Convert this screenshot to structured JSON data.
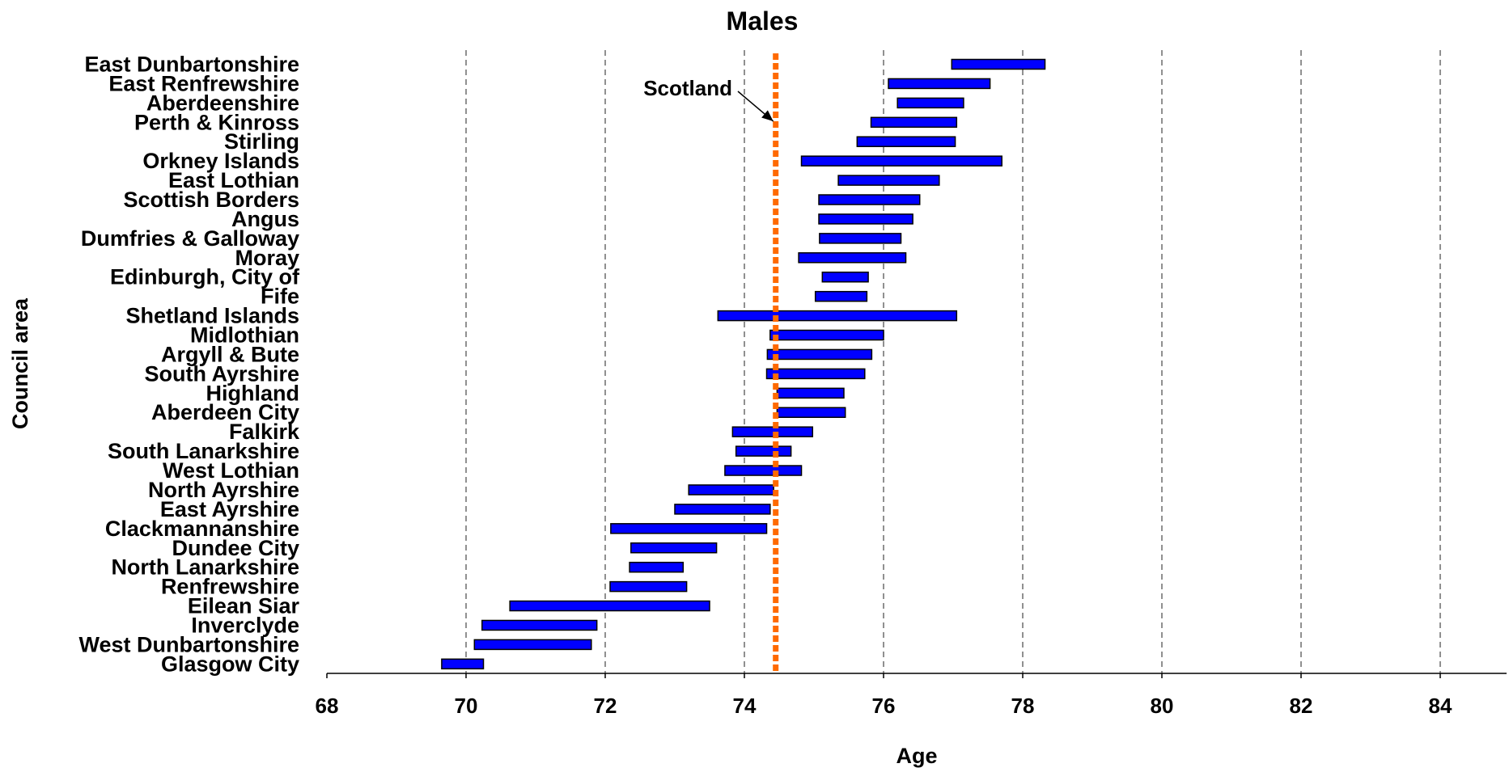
{
  "chart_data": {
    "type": "bar",
    "subtype": "floating-range",
    "title": "Males",
    "xlabel": "Age",
    "ylabel": "Council area",
    "xlim": [
      68,
      85
    ],
    "xticks": [
      68,
      70,
      72,
      74,
      76,
      78,
      80,
      82,
      84
    ],
    "grid": "vertical dashed",
    "legend": "none",
    "colors": {
      "bar_fill": "#0000FF",
      "bar_edge": "#000000",
      "reference_line": "#FF6A00",
      "grid": "#555555"
    },
    "reference_line": {
      "label": "Scotland",
      "value": 74.45
    },
    "categories": [
      "East Dunbartonshire",
      "East Renfrewshire",
      "Aberdeenshire",
      "Perth & Kinross",
      "Stirling",
      "Orkney Islands",
      "East Lothian",
      "Scottish Borders",
      "Angus",
      "Dumfries & Galloway",
      "Moray",
      "Edinburgh, City of",
      "Fife",
      "Shetland Islands",
      "Midlothian",
      "Argyll & Bute",
      "South Ayrshire",
      "Highland",
      "Aberdeen City",
      "Falkirk",
      "South Lanarkshire",
      "West Lothian",
      "North Ayrshire",
      "East Ayrshire",
      "Clackmannanshire",
      "Dundee City",
      "North Lanarkshire",
      "Renfrewshire",
      "Eilean Siar",
      "Inverclyde",
      "West Dunbartonshire",
      "Glasgow City"
    ],
    "ranges": [
      [
        76.98,
        78.32
      ],
      [
        76.07,
        77.53
      ],
      [
        76.2,
        77.15
      ],
      [
        75.82,
        77.05
      ],
      [
        75.62,
        77.03
      ],
      [
        74.82,
        77.7
      ],
      [
        75.35,
        76.8
      ],
      [
        75.07,
        76.52
      ],
      [
        75.07,
        76.42
      ],
      [
        75.08,
        76.25
      ],
      [
        74.78,
        76.32
      ],
      [
        75.12,
        75.78
      ],
      [
        75.02,
        75.76
      ],
      [
        73.62,
        77.05
      ],
      [
        74.37,
        76.0
      ],
      [
        74.33,
        75.83
      ],
      [
        74.32,
        75.73
      ],
      [
        74.47,
        75.43
      ],
      [
        74.47,
        75.45
      ],
      [
        73.83,
        74.98
      ],
      [
        73.88,
        74.67
      ],
      [
        73.72,
        74.82
      ],
      [
        73.2,
        74.42
      ],
      [
        73.0,
        74.37
      ],
      [
        72.08,
        74.32
      ],
      [
        72.37,
        73.6
      ],
      [
        72.35,
        73.12
      ],
      [
        72.07,
        73.17
      ],
      [
        70.63,
        73.5
      ],
      [
        70.23,
        71.88
      ],
      [
        70.12,
        71.8
      ],
      [
        69.65,
        70.25
      ]
    ]
  }
}
